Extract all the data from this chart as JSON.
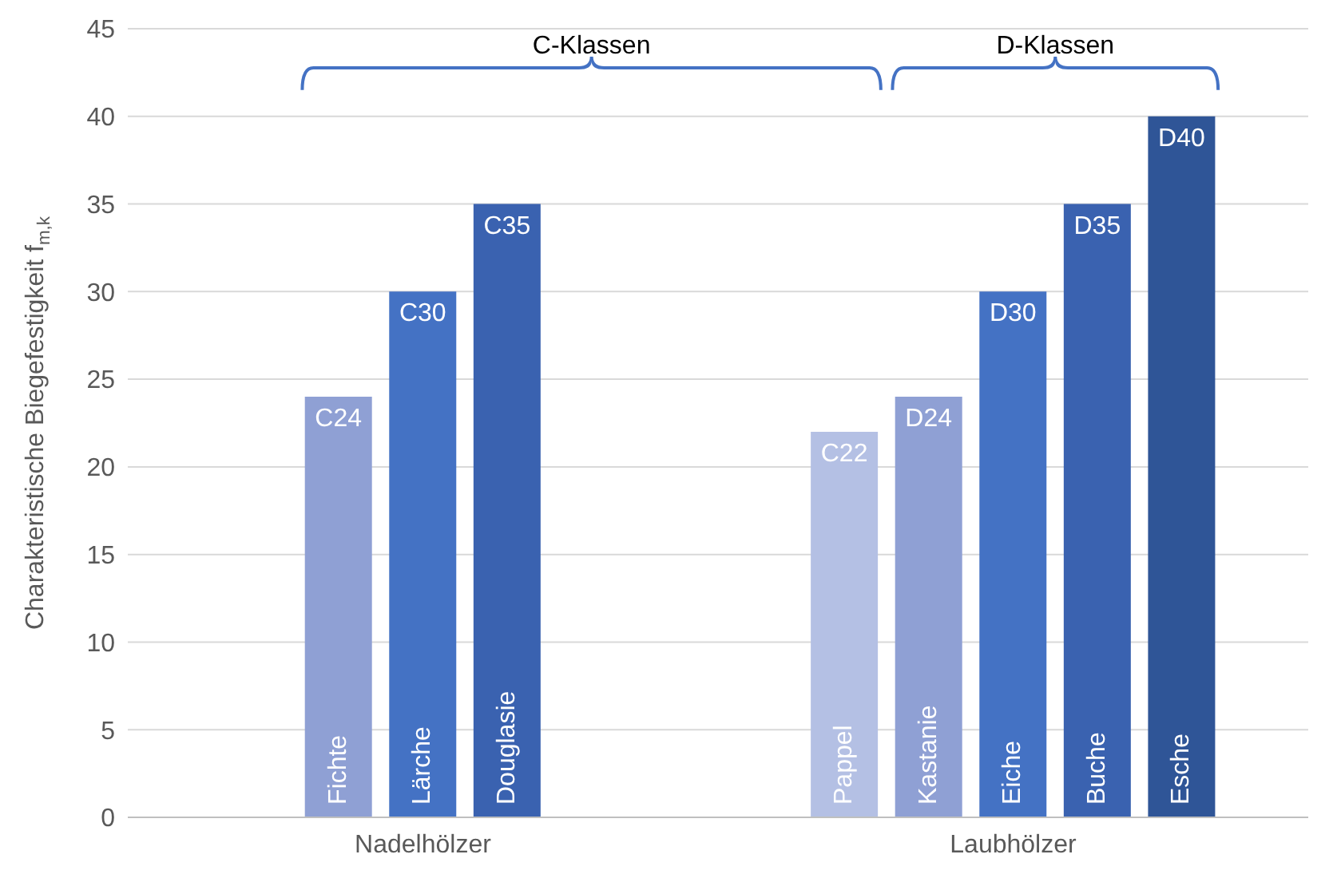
{
  "chart_data": {
    "type": "bar",
    "ylabel": "Charakteristische Biegefestigkeit f$_{m,k}$",
    "categories": [
      null,
      null,
      "Fichte",
      "Lärche",
      "Douglasie",
      null,
      null,
      null,
      "Pappel",
      "Kastanie",
      "Eiche",
      "Buche",
      "Esche",
      null
    ],
    "values": [
      null,
      null,
      24,
      30,
      35,
      null,
      null,
      null,
      22,
      24,
      30,
      35,
      40,
      null
    ],
    "colors": [
      "#8fa0d4",
      "#8fa0d4",
      "#8fa0d4",
      "#4472c4",
      "#3a62b0",
      "#8fa0d4",
      "#8fa0d4",
      "#8fa0d4",
      "#b4c0e4",
      "#8fa0d4",
      "#4472c4",
      "#3a62b0",
      "#2f5597",
      "#8fa0d4"
    ],
    "value_labels": [
      null,
      null,
      "C24",
      "C30",
      "C35",
      null,
      null,
      null,
      "C22",
      "D24",
      "D30",
      "D35",
      "D40",
      null
    ],
    "ylim": [
      0,
      45
    ],
    "yticks": [
      0,
      5,
      10,
      15,
      20,
      25,
      30,
      35,
      40,
      45
    ],
    "grid": "y",
    "annotations": [
      "Nadelhölzer",
      "Laubhölzer",
      "C-Klassen",
      "D-Klassen"
    ]
  }
}
